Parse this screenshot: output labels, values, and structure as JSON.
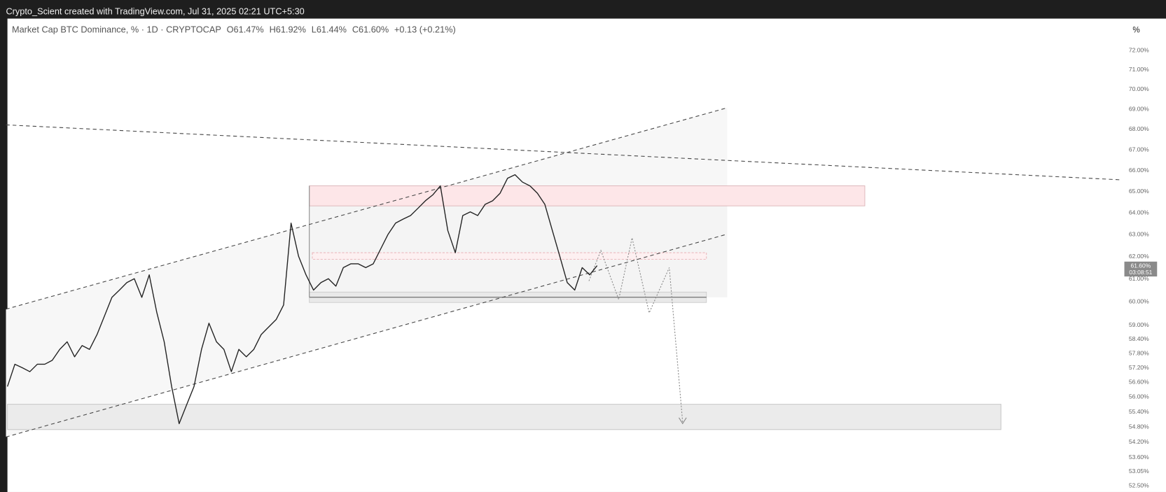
{
  "header": {
    "credit": "Crypto_Scient created with TradingView.com, Jul 31, 2025 02:21 UTC+5:30"
  },
  "legend": {
    "symbol": "Market Cap BTC Dominance, % · 1D · CRYPTOCAP",
    "open": "O61.47%",
    "high": "H61.92%",
    "low": "L61.44%",
    "close": "C61.60%",
    "change": "+0.13 (+0.21%)"
  },
  "scale_unit": "%",
  "price_label": {
    "price": "61.60%",
    "countdown": "03:08:51"
  },
  "chart_data": {
    "type": "line",
    "log_scale": true,
    "color": "#222222",
    "values": [
      56.43,
      57.35,
      57.2,
      57.04,
      57.35,
      57.35,
      57.51,
      57.97,
      58.29,
      57.66,
      58.13,
      57.97,
      58.6,
      59.39,
      60.2,
      60.52,
      60.85,
      61.02,
      60.2,
      61.19,
      59.55,
      58.29,
      56.43,
      54.93,
      55.68,
      56.43,
      57.97,
      59.08,
      58.29,
      57.97,
      57.04,
      57.97,
      57.66,
      57.97,
      58.6,
      58.92,
      59.24,
      59.87,
      63.53,
      62.02,
      61.19,
      60.52,
      60.85,
      61.02,
      60.69,
      61.51,
      61.68,
      61.68,
      61.51,
      61.68,
      62.35,
      63.02,
      63.53,
      63.71,
      63.88,
      64.22,
      64.57,
      64.85,
      65.27,
      63.19,
      62.18,
      63.88,
      64.05,
      63.88,
      64.4,
      64.57,
      64.92,
      65.63,
      65.8,
      65.45,
      65.27,
      64.92,
      64.4,
      63.19,
      62.02,
      60.85,
      60.52,
      61.51,
      61.19,
      61.6
    ],
    "ylim": [
      52.5,
      72
    ],
    "yticks": [
      {
        "value": 72,
        "label": "72.00%"
      },
      {
        "value": 71,
        "label": "71.00%"
      },
      {
        "value": 70,
        "label": "70.00%"
      },
      {
        "value": 69,
        "label": "69.00%"
      },
      {
        "value": 68,
        "label": "68.00%"
      },
      {
        "value": 67,
        "label": "67.00%"
      },
      {
        "value": 66,
        "label": "66.00%"
      },
      {
        "value": 65,
        "label": "65.00%"
      },
      {
        "value": 64,
        "label": "64.00%"
      },
      {
        "value": 63,
        "label": "63.00%"
      },
      {
        "value": 62,
        "label": "62.00%"
      },
      {
        "value": 61,
        "label": "61.00%"
      },
      {
        "value": 60,
        "label": "60.00%"
      },
      {
        "value": 59,
        "label": "59.00%"
      },
      {
        "value": 58.4,
        "label": "58.40%"
      },
      {
        "value": 57.8,
        "label": "57.80%"
      },
      {
        "value": 57.2,
        "label": "57.20%"
      },
      {
        "value": 56.6,
        "label": "56.60%"
      },
      {
        "value": 56,
        "label": "56.00%"
      },
      {
        "value": 55.4,
        "label": "55.40%"
      },
      {
        "value": 54.8,
        "label": "54.80%"
      },
      {
        "value": 54.2,
        "label": "54.20%"
      },
      {
        "value": 53.6,
        "label": "53.60%"
      },
      {
        "value": 53.05,
        "label": "53.05%"
      },
      {
        "value": 52.5,
        "label": "52.50%"
      }
    ]
  }
}
